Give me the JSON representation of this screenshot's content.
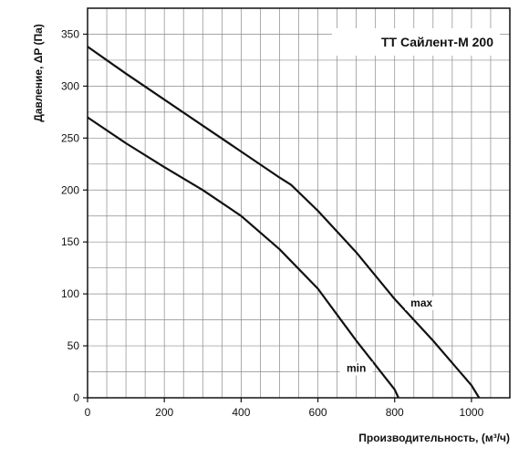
{
  "chart_data": {
    "type": "line",
    "title": "ТТ Сайлент-М 200",
    "xlabel": "Производительность, (м³/ч)",
    "ylabel": "Давление, ΔP (Па)",
    "xlim": [
      0,
      1100
    ],
    "ylim": [
      0,
      375
    ],
    "xticks": [
      0,
      200,
      400,
      600,
      800,
      1000
    ],
    "yticks": [
      0,
      50,
      100,
      150,
      200,
      250,
      300,
      350
    ],
    "grid": true,
    "series": [
      {
        "name": "max",
        "x": [
          0,
          100,
          200,
          300,
          400,
          500,
          530,
          600,
          700,
          800,
          900,
          1000,
          1020
        ],
        "y": [
          338,
          312,
          287,
          262,
          237,
          212,
          205,
          180,
          140,
          95,
          55,
          12,
          0
        ],
        "label_at": [
          870,
          88
        ]
      },
      {
        "name": "min",
        "x": [
          0,
          100,
          200,
          300,
          400,
          500,
          600,
          700,
          800,
          810
        ],
        "y": [
          270,
          245,
          222,
          200,
          175,
          143,
          105,
          55,
          8,
          0
        ],
        "label_at": [
          700,
          25
        ]
      }
    ],
    "line_color": "#111111"
  }
}
